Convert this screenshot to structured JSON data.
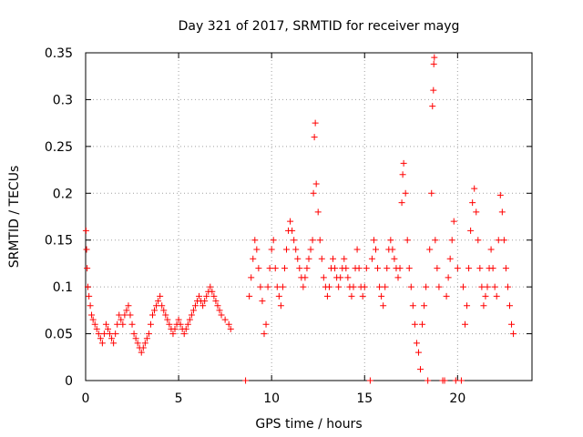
{
  "chart_data": {
    "type": "scatter",
    "title": "Day 321 of 2017, SRMTID for receiver mayg",
    "xlabel": "GPS time / hours",
    "ylabel": "SRMTID / TECUs",
    "xlim": [
      0,
      24
    ],
    "ylim": [
      0,
      0.35
    ],
    "xticks": [
      0,
      5,
      10,
      15,
      20
    ],
    "xtick_labels": [
      "0",
      "5",
      "10",
      "15",
      "20"
    ],
    "yticks": [
      0,
      0.05,
      0.1,
      0.15,
      0.2,
      0.25,
      0.3,
      0.35
    ],
    "ytick_labels": [
      "0",
      "0.05",
      "0.1",
      "0.15",
      "0.2",
      "0.25",
      "0.3",
      "0.35"
    ],
    "grid": true,
    "marker": "+",
    "color": "#ff0000",
    "series": [
      {
        "name": "SRMTID",
        "points": [
          [
            0.02,
            0.16
          ],
          [
            0.05,
            0.14
          ],
          [
            0.08,
            0.12
          ],
          [
            0.12,
            0.1
          ],
          [
            0.18,
            0.09
          ],
          [
            0.25,
            0.08
          ],
          [
            0.32,
            0.07
          ],
          [
            0.4,
            0.065
          ],
          [
            0.5,
            0.06
          ],
          [
            0.6,
            0.055
          ],
          [
            0.7,
            0.05
          ],
          [
            0.8,
            0.045
          ],
          [
            0.9,
            0.04
          ],
          [
            1.0,
            0.05
          ],
          [
            1.1,
            0.06
          ],
          [
            1.2,
            0.055
          ],
          [
            1.3,
            0.05
          ],
          [
            1.4,
            0.045
          ],
          [
            1.5,
            0.04
          ],
          [
            1.6,
            0.05
          ],
          [
            1.7,
            0.06
          ],
          [
            1.8,
            0.07
          ],
          [
            1.9,
            0.065
          ],
          [
            2.0,
            0.06
          ],
          [
            2.1,
            0.07
          ],
          [
            2.2,
            0.075
          ],
          [
            2.3,
            0.08
          ],
          [
            2.4,
            0.07
          ],
          [
            2.5,
            0.06
          ],
          [
            2.6,
            0.05
          ],
          [
            2.7,
            0.045
          ],
          [
            2.8,
            0.04
          ],
          [
            2.9,
            0.035
          ],
          [
            3.0,
            0.03
          ],
          [
            3.1,
            0.035
          ],
          [
            3.2,
            0.04
          ],
          [
            3.3,
            0.045
          ],
          [
            3.4,
            0.05
          ],
          [
            3.5,
            0.06
          ],
          [
            3.6,
            0.07
          ],
          [
            3.7,
            0.075
          ],
          [
            3.8,
            0.08
          ],
          [
            3.9,
            0.085
          ],
          [
            4.0,
            0.09
          ],
          [
            4.1,
            0.08
          ],
          [
            4.2,
            0.075
          ],
          [
            4.3,
            0.07
          ],
          [
            4.4,
            0.065
          ],
          [
            4.5,
            0.06
          ],
          [
            4.6,
            0.055
          ],
          [
            4.7,
            0.05
          ],
          [
            4.8,
            0.055
          ],
          [
            4.9,
            0.06
          ],
          [
            5.0,
            0.065
          ],
          [
            5.1,
            0.06
          ],
          [
            5.2,
            0.055
          ],
          [
            5.3,
            0.05
          ],
          [
            5.4,
            0.055
          ],
          [
            5.5,
            0.06
          ],
          [
            5.6,
            0.065
          ],
          [
            5.7,
            0.07
          ],
          [
            5.8,
            0.075
          ],
          [
            5.9,
            0.08
          ],
          [
            6.0,
            0.085
          ],
          [
            6.1,
            0.09
          ],
          [
            6.2,
            0.085
          ],
          [
            6.3,
            0.08
          ],
          [
            6.4,
            0.085
          ],
          [
            6.5,
            0.09
          ],
          [
            6.6,
            0.095
          ],
          [
            6.7,
            0.1
          ],
          [
            6.8,
            0.095
          ],
          [
            6.9,
            0.09
          ],
          [
            7.0,
            0.085
          ],
          [
            7.1,
            0.08
          ],
          [
            7.2,
            0.075
          ],
          [
            7.3,
            0.07
          ],
          [
            7.5,
            0.065
          ],
          [
            7.7,
            0.06
          ],
          [
            7.8,
            0.055
          ],
          [
            8.6,
            0.0
          ],
          [
            8.8,
            0.09
          ],
          [
            8.9,
            0.11
          ],
          [
            9.0,
            0.13
          ],
          [
            9.1,
            0.15
          ],
          [
            9.2,
            0.14
          ],
          [
            9.3,
            0.12
          ],
          [
            9.4,
            0.1
          ],
          [
            9.5,
            0.085
          ],
          [
            9.6,
            0.05
          ],
          [
            9.7,
            0.06
          ],
          [
            9.8,
            0.1
          ],
          [
            9.9,
            0.12
          ],
          [
            10.0,
            0.14
          ],
          [
            10.1,
            0.15
          ],
          [
            10.2,
            0.12
          ],
          [
            10.3,
            0.1
          ],
          [
            10.4,
            0.09
          ],
          [
            10.5,
            0.08
          ],
          [
            10.6,
            0.1
          ],
          [
            10.7,
            0.12
          ],
          [
            10.8,
            0.14
          ],
          [
            10.9,
            0.16
          ],
          [
            11.0,
            0.17
          ],
          [
            11.1,
            0.16
          ],
          [
            11.2,
            0.15
          ],
          [
            11.3,
            0.14
          ],
          [
            11.4,
            0.13
          ],
          [
            11.5,
            0.12
          ],
          [
            11.6,
            0.11
          ],
          [
            11.7,
            0.1
          ],
          [
            11.8,
            0.11
          ],
          [
            11.9,
            0.12
          ],
          [
            12.0,
            0.13
          ],
          [
            12.1,
            0.14
          ],
          [
            12.2,
            0.15
          ],
          [
            12.25,
            0.2
          ],
          [
            12.3,
            0.26
          ],
          [
            12.35,
            0.275
          ],
          [
            12.4,
            0.21
          ],
          [
            12.5,
            0.18
          ],
          [
            12.6,
            0.15
          ],
          [
            12.7,
            0.13
          ],
          [
            12.8,
            0.11
          ],
          [
            12.9,
            0.1
          ],
          [
            13.0,
            0.09
          ],
          [
            13.1,
            0.1
          ],
          [
            13.2,
            0.12
          ],
          [
            13.3,
            0.13
          ],
          [
            13.4,
            0.12
          ],
          [
            13.5,
            0.11
          ],
          [
            13.6,
            0.1
          ],
          [
            13.7,
            0.11
          ],
          [
            13.8,
            0.12
          ],
          [
            13.9,
            0.13
          ],
          [
            14.0,
            0.12
          ],
          [
            14.1,
            0.11
          ],
          [
            14.2,
            0.1
          ],
          [
            14.3,
            0.09
          ],
          [
            14.4,
            0.1
          ],
          [
            14.5,
            0.12
          ],
          [
            14.6,
            0.14
          ],
          [
            14.7,
            0.12
          ],
          [
            14.8,
            0.1
          ],
          [
            14.9,
            0.09
          ],
          [
            15.0,
            0.1
          ],
          [
            15.1,
            0.12
          ],
          [
            15.3,
            0.0
          ],
          [
            15.4,
            0.13
          ],
          [
            15.5,
            0.15
          ],
          [
            15.6,
            0.14
          ],
          [
            15.7,
            0.12
          ],
          [
            15.8,
            0.1
          ],
          [
            15.9,
            0.09
          ],
          [
            16.0,
            0.08
          ],
          [
            16.1,
            0.1
          ],
          [
            16.2,
            0.12
          ],
          [
            16.3,
            0.14
          ],
          [
            16.4,
            0.15
          ],
          [
            16.5,
            0.14
          ],
          [
            16.6,
            0.13
          ],
          [
            16.7,
            0.12
          ],
          [
            16.8,
            0.11
          ],
          [
            16.9,
            0.12
          ],
          [
            17.0,
            0.19
          ],
          [
            17.05,
            0.22
          ],
          [
            17.1,
            0.232
          ],
          [
            17.2,
            0.2
          ],
          [
            17.3,
            0.15
          ],
          [
            17.4,
            0.12
          ],
          [
            17.5,
            0.1
          ],
          [
            17.6,
            0.08
          ],
          [
            17.7,
            0.06
          ],
          [
            17.8,
            0.04
          ],
          [
            17.9,
            0.03
          ],
          [
            18.0,
            0.012
          ],
          [
            18.1,
            0.06
          ],
          [
            18.2,
            0.08
          ],
          [
            18.3,
            0.1
          ],
          [
            18.4,
            0.0
          ],
          [
            18.5,
            0.14
          ],
          [
            18.6,
            0.2
          ],
          [
            18.65,
            0.293
          ],
          [
            18.7,
            0.31
          ],
          [
            18.72,
            0.338
          ],
          [
            18.75,
            0.345
          ],
          [
            18.8,
            0.15
          ],
          [
            18.9,
            0.12
          ],
          [
            19.0,
            0.1
          ],
          [
            19.2,
            0.0
          ],
          [
            19.3,
            0.0
          ],
          [
            19.4,
            0.09
          ],
          [
            19.5,
            0.11
          ],
          [
            19.6,
            0.13
          ],
          [
            19.7,
            0.15
          ],
          [
            19.8,
            0.17
          ],
          [
            19.9,
            0.0
          ],
          [
            20.0,
            0.12
          ],
          [
            20.2,
            0.0
          ],
          [
            20.3,
            0.1
          ],
          [
            20.4,
            0.06
          ],
          [
            20.5,
            0.08
          ],
          [
            20.6,
            0.12
          ],
          [
            20.7,
            0.16
          ],
          [
            20.8,
            0.19
          ],
          [
            20.9,
            0.205
          ],
          [
            21.0,
            0.18
          ],
          [
            21.1,
            0.15
          ],
          [
            21.2,
            0.12
          ],
          [
            21.3,
            0.1
          ],
          [
            21.4,
            0.08
          ],
          [
            21.5,
            0.09
          ],
          [
            21.6,
            0.1
          ],
          [
            21.7,
            0.12
          ],
          [
            21.8,
            0.14
          ],
          [
            21.9,
            0.12
          ],
          [
            22.0,
            0.1
          ],
          [
            22.1,
            0.09
          ],
          [
            22.2,
            0.15
          ],
          [
            22.3,
            0.198
          ],
          [
            22.4,
            0.18
          ],
          [
            22.5,
            0.15
          ],
          [
            22.6,
            0.12
          ],
          [
            22.7,
            0.1
          ],
          [
            22.8,
            0.08
          ],
          [
            22.9,
            0.06
          ],
          [
            23.0,
            0.05
          ]
        ]
      }
    ]
  }
}
